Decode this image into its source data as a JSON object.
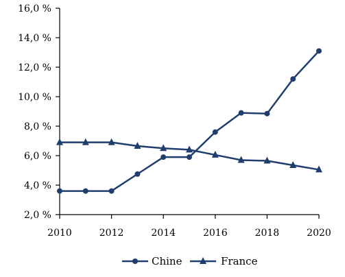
{
  "chart_data": {
    "type": "line",
    "title": "",
    "xlabel": "",
    "ylabel": "",
    "x": [
      2010,
      2011,
      2012,
      2013,
      2014,
      2015,
      2016,
      2017,
      2018,
      2019,
      2020
    ],
    "xlim": [
      2010,
      2020
    ],
    "ylim": [
      2.0,
      16.0
    ],
    "x_ticks": [
      "2010",
      "2012",
      "2014",
      "2016",
      "2018",
      "2020"
    ],
    "x_tick_values": [
      2010,
      2012,
      2014,
      2016,
      2018,
      2020
    ],
    "y_ticks": [
      "2,0 %",
      "4,0 %",
      "6,0 %",
      "8,0 %",
      "10,0 %",
      "12,0 %",
      "14,0 %",
      "16,0 %"
    ],
    "y_tick_values": [
      2,
      4,
      6,
      8,
      10,
      12,
      14,
      16
    ],
    "grid": false,
    "legend_position": "bottom",
    "series": [
      {
        "name": "Chine",
        "marker": "circle",
        "color": "#1f3e6e",
        "values": [
          3.6,
          3.6,
          3.6,
          4.75,
          5.9,
          5.9,
          7.6,
          8.9,
          8.85,
          11.2,
          13.1
        ]
      },
      {
        "name": "France",
        "marker": "triangle",
        "color": "#1f3e6e",
        "values": [
          6.9,
          6.9,
          6.9,
          6.65,
          6.5,
          6.4,
          6.05,
          5.7,
          5.65,
          5.35,
          5.05
        ]
      }
    ]
  }
}
